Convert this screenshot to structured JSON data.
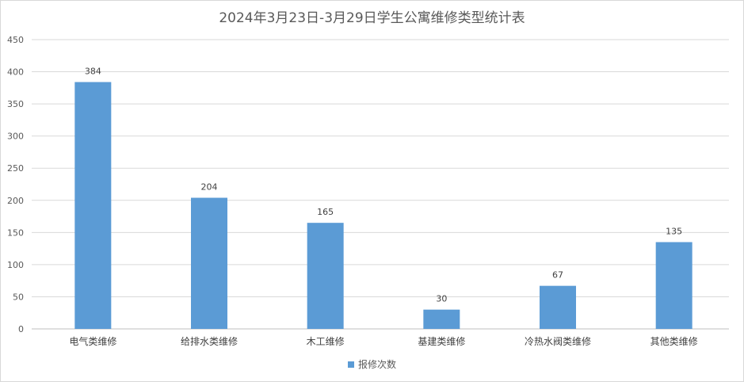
{
  "chart_data": {
    "type": "bar",
    "title": "2024年3月23日-3月29日学生公寓维修类型统计表",
    "categories": [
      "电气类维修",
      "给排水类维修",
      "木工维修",
      "基建类维修",
      "冷热水阀类维修",
      "其他类维修"
    ],
    "series": [
      {
        "name": "报修次数",
        "values": [
          384,
          204,
          165,
          30,
          67,
          135
        ],
        "color": "#5b9bd5"
      }
    ],
    "yticks": [
      0,
      50,
      100,
      150,
      200,
      250,
      300,
      350,
      400,
      450
    ],
    "ylim": [
      0,
      450
    ],
    "grid": true,
    "legend": "bottom-center"
  }
}
